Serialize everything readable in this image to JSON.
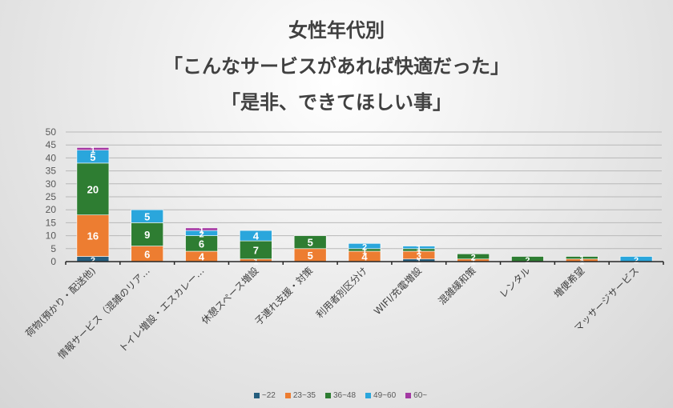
{
  "title": {
    "line1": "女性年代別",
    "line2": "「こんなサービスがあれば快適だった」",
    "line3": "「是非、できてほしい事」"
  },
  "legend": [
    {
      "label": "~22",
      "color": "#255e7e"
    },
    {
      "label": "23~35",
      "color": "#ed7d31"
    },
    {
      "label": "36~48",
      "color": "#2e7d32"
    },
    {
      "label": "49~60",
      "color": "#2aa6dc"
    },
    {
      "label": "60~",
      "color": "#a339a3"
    }
  ],
  "chart_data": {
    "type": "bar",
    "stacked": true,
    "title": "女性年代別 「こんなサービスがあれば快適だった」 「是非、できてほしい事」",
    "xlabel": "",
    "ylabel": "",
    "ylim": [
      0,
      50
    ],
    "yticks": [
      0,
      5,
      10,
      15,
      20,
      25,
      30,
      35,
      40,
      45,
      50
    ],
    "grid": true,
    "legend_position": "bottom",
    "categories": [
      "荷物(預かり・配送他)",
      "情報サービス（混雑のリア…",
      "トイレ増設・エスカレー…",
      "休憩スペース増設",
      "子連れ支援・対策",
      "利用者別区分け",
      "WIFI/充電増設",
      "混雑緩和策",
      "レンタル",
      "増便希望",
      "マッサージサービス"
    ],
    "series": [
      {
        "name": "~22",
        "values": [
          2,
          0,
          0,
          0,
          0,
          0,
          1,
          0,
          0,
          0,
          0
        ]
      },
      {
        "name": "23~35",
        "values": [
          16,
          6,
          4,
          1,
          5,
          4,
          3,
          1,
          0,
          1,
          0
        ]
      },
      {
        "name": "36~48",
        "values": [
          20,
          9,
          6,
          7,
          5,
          1,
          1,
          2,
          2,
          1,
          0
        ]
      },
      {
        "name": "49~60",
        "values": [
          5,
          5,
          2,
          4,
          0,
          2,
          1,
          0,
          0,
          0,
          2
        ]
      },
      {
        "name": "60~",
        "values": [
          1,
          0,
          1,
          0,
          0,
          0,
          0,
          0,
          0,
          0,
          0
        ]
      }
    ]
  }
}
